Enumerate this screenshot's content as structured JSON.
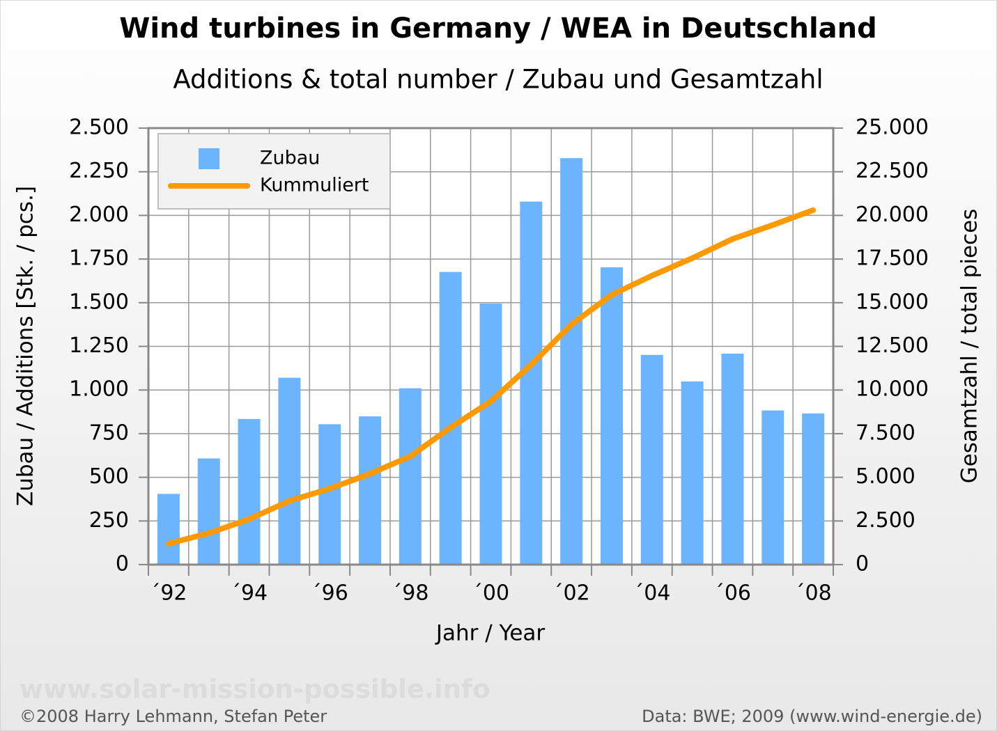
{
  "chart_data": {
    "type": "bar-line",
    "title": "Wind turbines in Germany / WEA in Deutschland",
    "subtitle": "Additions & total number / Zubau und Gesamtzahl",
    "x_label": "Jahr / Year",
    "y_label": "Zubau / Additions [Stk. / pcs.]",
    "y2_label": "Gesamtzahl / total pieces",
    "watermark": "www.solar-mission-possible.info",
    "credit": "©2008 Harry Lehmann, Stefan Peter",
    "source": "Data: BWE; 2009 (www.wind-energie.de)",
    "categories": [
      "´92",
      null,
      "´94",
      null,
      "´96",
      null,
      "´98",
      null,
      "´00",
      null,
      "´02",
      null,
      "´04",
      null,
      "´06",
      null,
      "´08"
    ],
    "series": [
      {
        "name": "Zubau",
        "type": "bar",
        "color": "#6cb4fe",
        "values": [
          405,
          608,
          834,
          1070,
          804,
          849,
          1010,
          1676,
          1495,
          2079,
          2328,
          1703,
          1201,
          1049,
          1208,
          883,
          866
        ]
      },
      {
        "name": "Kummuliert",
        "type": "line",
        "axis": "y2",
        "color": "#ff9900",
        "values": [
          1200,
          1800,
          2600,
          3650,
          4350,
          5200,
          6200,
          7850,
          9350,
          11450,
          13750,
          15450,
          16550,
          17550,
          18650,
          19450,
          20300
        ]
      }
    ],
    "ylim": [
      0,
      2500
    ],
    "yticks": [
      0,
      250,
      500,
      750,
      {
        "value": 1000,
        "label": "1.000"
      },
      {
        "value": 1250,
        "label": "1.250"
      },
      {
        "value": 1500,
        "label": "1.500"
      },
      {
        "value": 1750,
        "label": "1.750"
      },
      {
        "value": 2000,
        "label": "2.000"
      },
      {
        "value": 2250,
        "label": "2.250"
      },
      {
        "value": 2500,
        "label": "2.500"
      }
    ],
    "y2lim": [
      0,
      25000
    ],
    "y2ticks": [
      0,
      {
        "value": 2500,
        "label": "2.500"
      },
      {
        "value": 5000,
        "label": "5.000"
      },
      {
        "value": 7500,
        "label": "7.500"
      },
      {
        "value": 10000,
        "label": "10.000"
      },
      {
        "value": 12500,
        "label": "12.500"
      },
      {
        "value": 15000,
        "label": "15.000"
      },
      {
        "value": 17500,
        "label": "17.500"
      },
      {
        "value": 20000,
        "label": "20.000"
      },
      {
        "value": 22500,
        "label": "22.500"
      },
      {
        "value": 25000,
        "label": "25.000"
      }
    ],
    "grid": true,
    "legend": "upper left"
  }
}
